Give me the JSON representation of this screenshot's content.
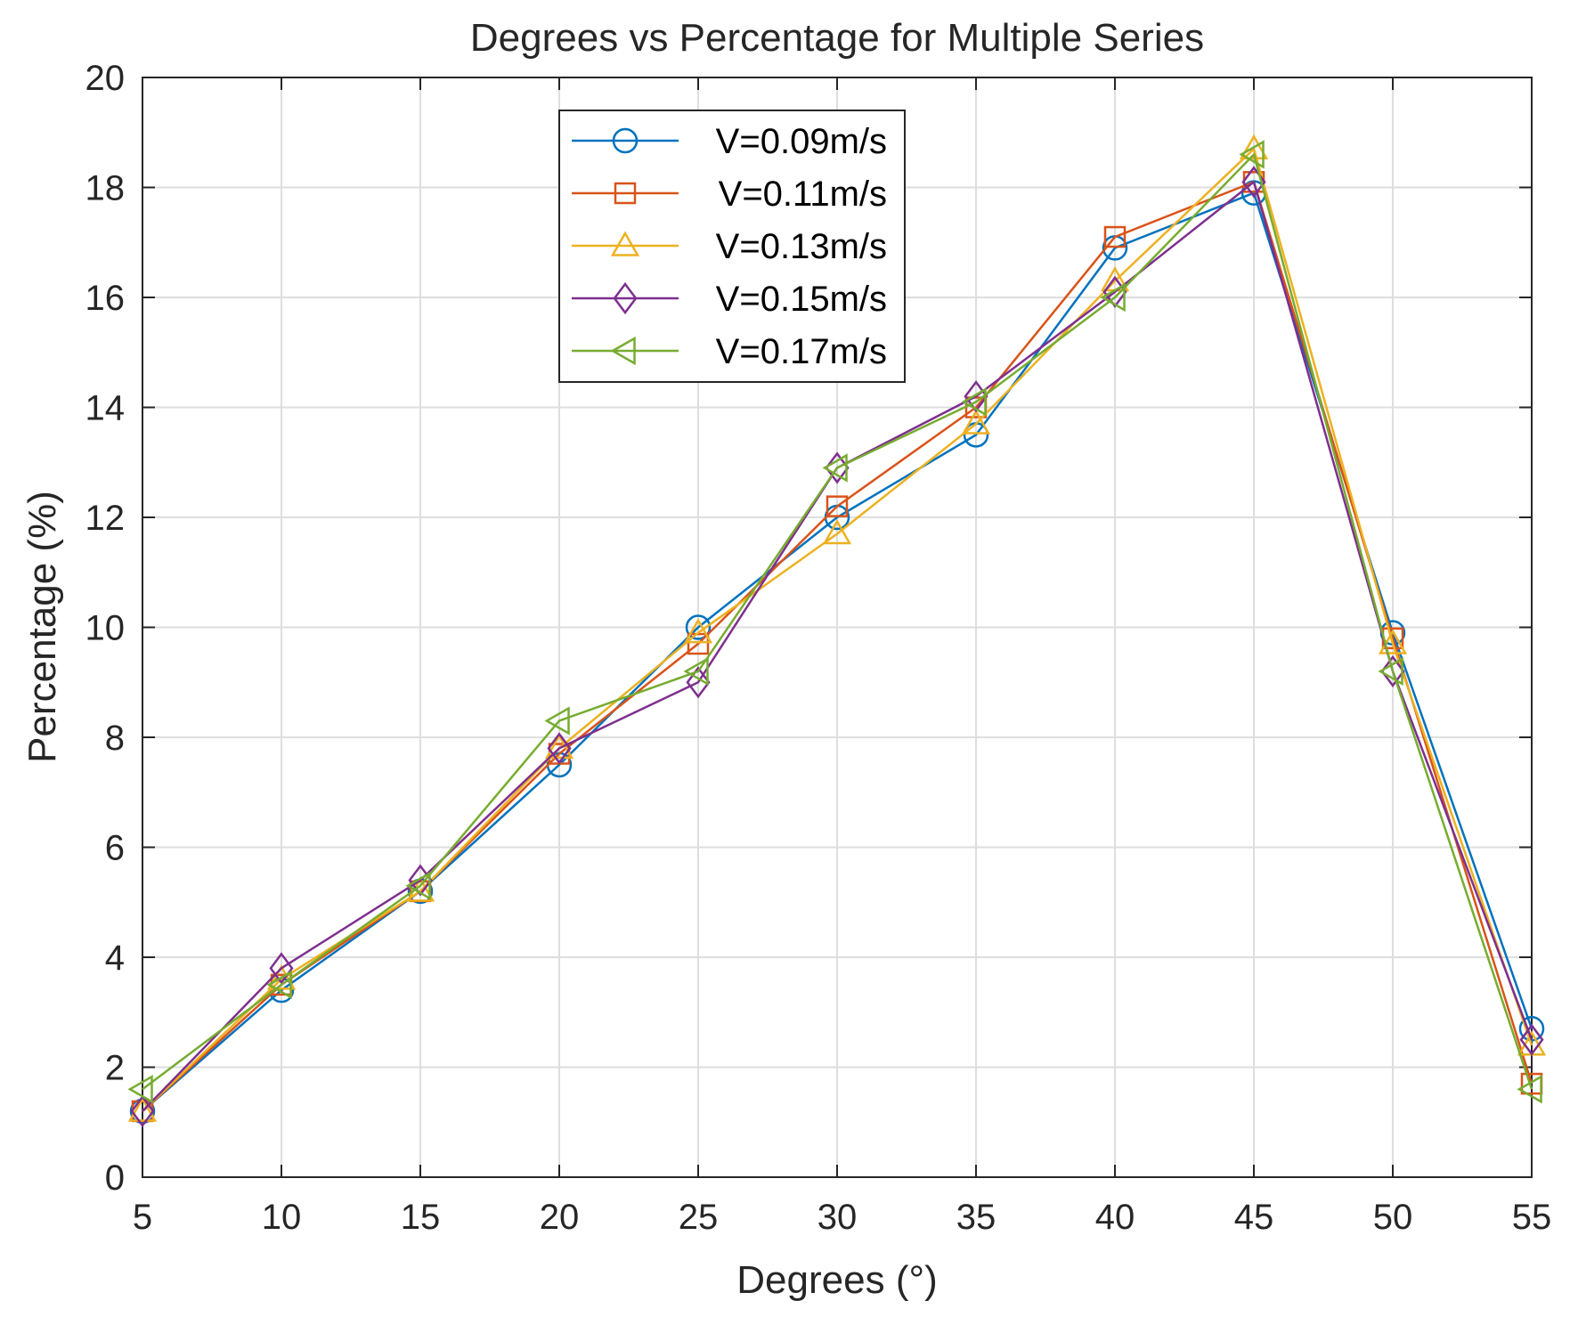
{
  "chart_data": {
    "type": "line",
    "title": "Degrees vs Percentage for Multiple Series",
    "xlabel": "Degrees (°)",
    "ylabel": "Percentage (%)",
    "xlim": [
      5,
      55
    ],
    "ylim": [
      0,
      20
    ],
    "grid": true,
    "legend_position": "top-center",
    "x": [
      5,
      10,
      15,
      20,
      25,
      30,
      35,
      40,
      45,
      50,
      55
    ],
    "x_ticks": [
      "5",
      "10",
      "15",
      "20",
      "25",
      "30",
      "35",
      "40",
      "45",
      "50",
      "55"
    ],
    "y_ticks": [
      "0",
      "2",
      "4",
      "6",
      "8",
      "10",
      "12",
      "14",
      "16",
      "18",
      "20"
    ],
    "series": [
      {
        "name": "V=0.09m/s",
        "color": "#0072BD",
        "marker": "circle",
        "values": [
          1.2,
          3.4,
          5.2,
          7.5,
          10.0,
          12.0,
          13.5,
          16.9,
          17.9,
          9.9,
          2.7
        ]
      },
      {
        "name": "V=0.11m/s",
        "color": "#D95319",
        "marker": "square",
        "values": [
          1.2,
          3.5,
          5.2,
          7.7,
          9.7,
          12.2,
          14.0,
          17.1,
          18.1,
          9.8,
          1.7
        ]
      },
      {
        "name": "V=0.13m/s",
        "color": "#EDB120",
        "marker": "triangle-up",
        "values": [
          1.2,
          3.6,
          5.2,
          7.8,
          9.9,
          11.7,
          13.7,
          16.3,
          18.7,
          9.7,
          2.4
        ]
      },
      {
        "name": "V=0.15m/s",
        "color": "#7E2F8E",
        "marker": "diamond",
        "values": [
          1.2,
          3.8,
          5.4,
          7.8,
          9.0,
          12.9,
          14.2,
          16.1,
          18.1,
          9.2,
          2.5
        ]
      },
      {
        "name": "V=0.17m/s",
        "color": "#77AC30",
        "marker": "triangle-left",
        "values": [
          1.6,
          3.5,
          5.3,
          8.3,
          9.2,
          12.9,
          14.1,
          16.0,
          18.6,
          9.2,
          1.6
        ]
      }
    ]
  }
}
